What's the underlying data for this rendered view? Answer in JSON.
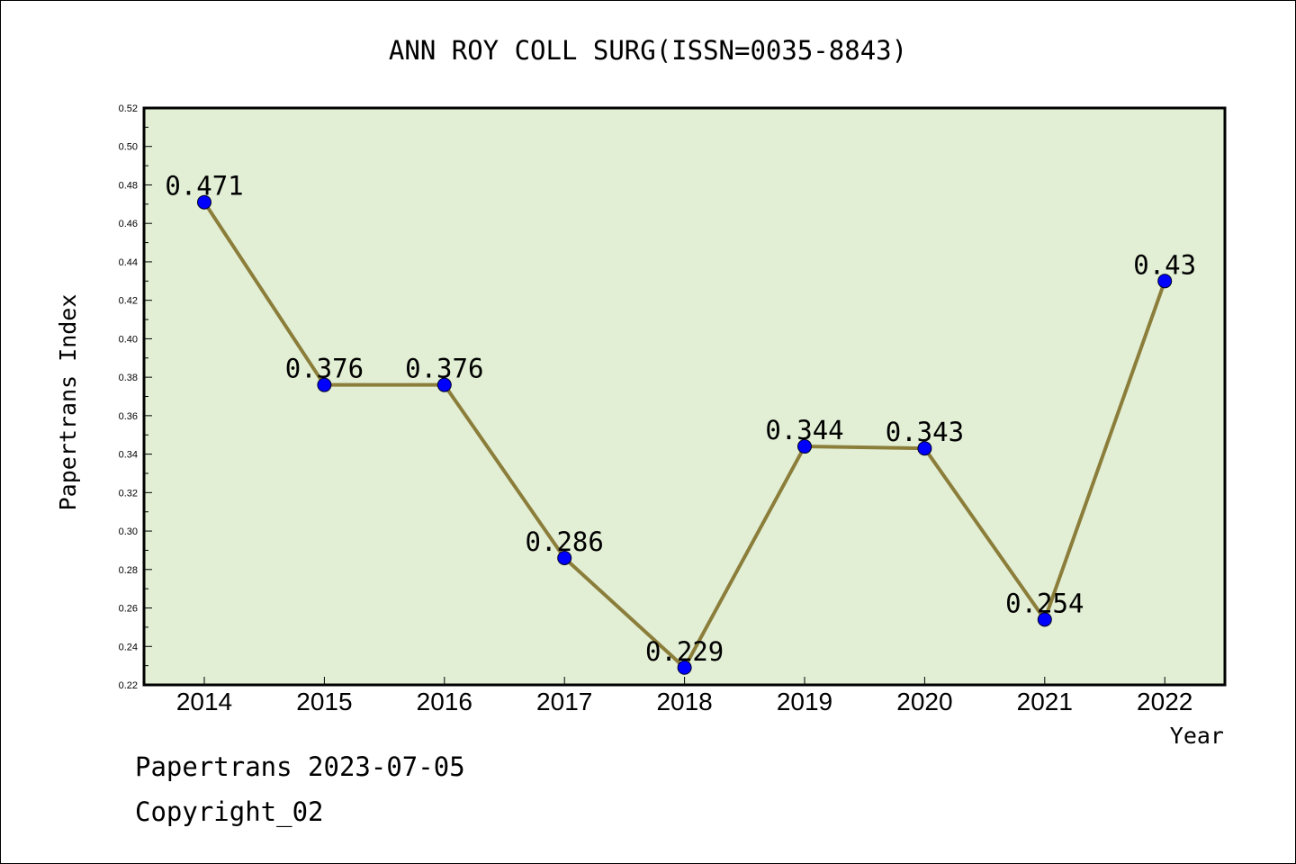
{
  "chart_data": {
    "type": "line",
    "title": "ANN ROY COLL SURG(ISSN=0035-8843)",
    "xlabel": "Year",
    "ylabel": "Papertrans Index",
    "categories": [
      "2014",
      "2015",
      "2016",
      "2017",
      "2018",
      "2019",
      "2020",
      "2021",
      "2022"
    ],
    "values": [
      0.471,
      0.376,
      0.376,
      0.286,
      0.229,
      0.344,
      0.343,
      0.254,
      0.43
    ],
    "value_labels": [
      "0.471",
      "0.376",
      "0.376",
      "0.286",
      "0.229",
      "0.344",
      "0.343",
      "0.254",
      "0.43"
    ],
    "ylim": [
      0.22,
      0.52
    ],
    "yticks": [
      "0.22",
      "0.24",
      "0.26",
      "0.28",
      "0.30",
      "0.32",
      "0.34",
      "0.36",
      "0.38",
      "0.40",
      "0.42",
      "0.44",
      "0.46",
      "0.48",
      "0.50",
      "0.52"
    ],
    "grid": false,
    "colors": {
      "plot_background": "#e2efd5",
      "line": "#8b7d3a",
      "marker": "#0000ff"
    }
  },
  "footer": {
    "date_line": "Papertrans 2023-07-05",
    "copyright_line": "Copyright_02"
  }
}
